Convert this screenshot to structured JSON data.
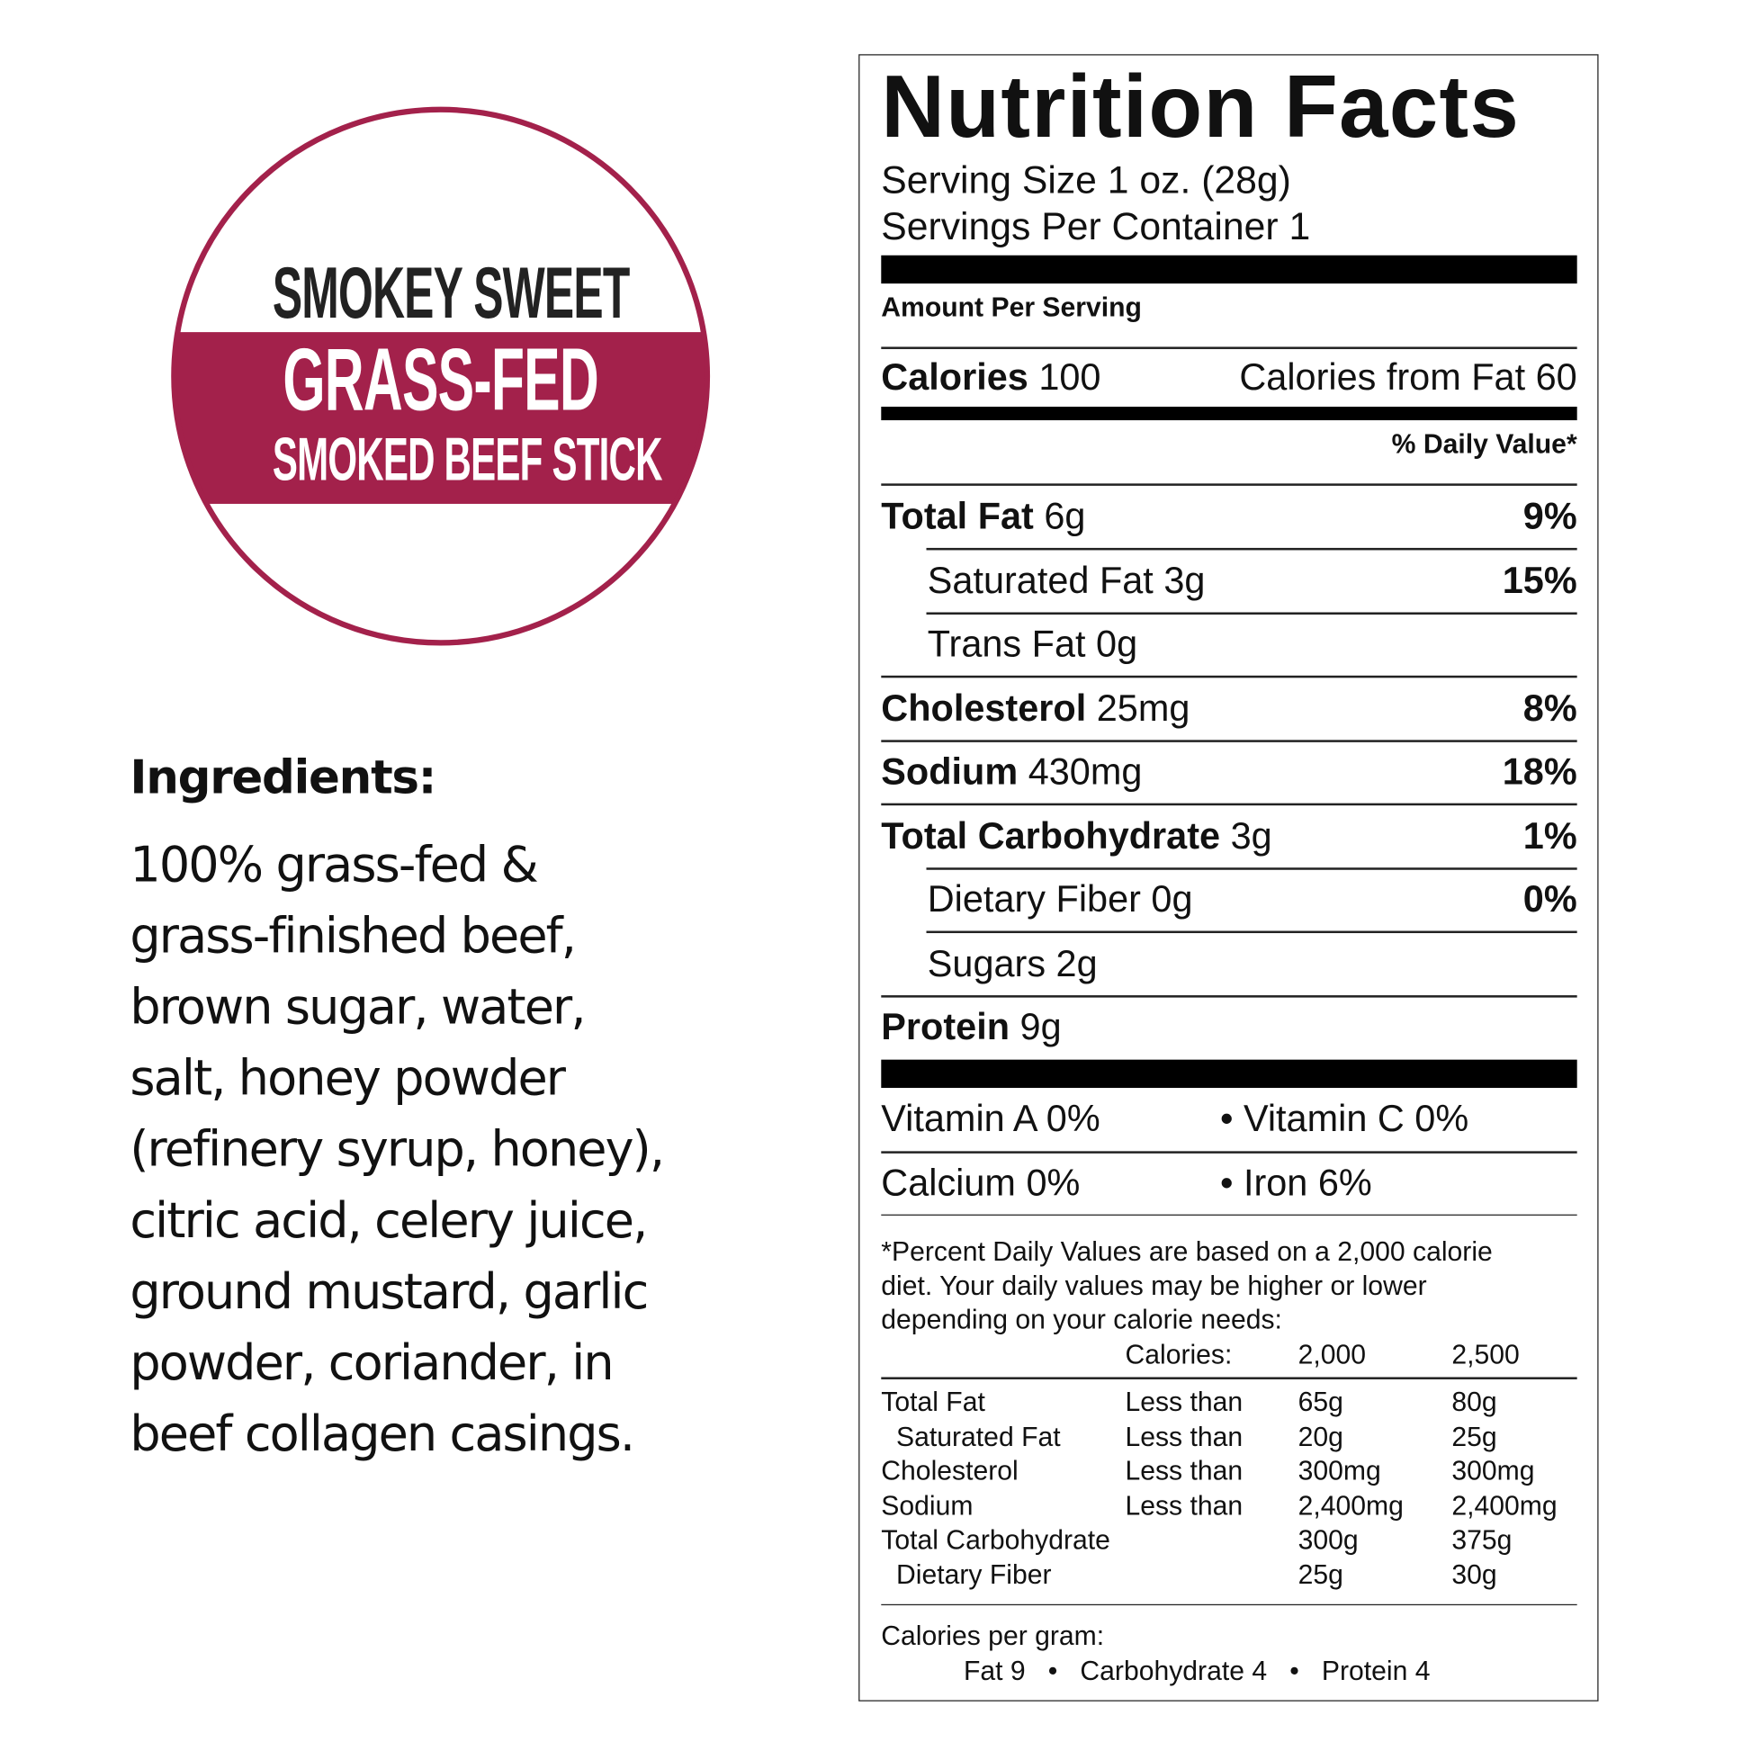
{
  "badge": {
    "line1": "SMOKEY SWEET",
    "line2": "GRASS-FED",
    "line3": "SMOKED BEEF STICK",
    "accent_color": "#A3214B"
  },
  "ingredients": {
    "title": "Ingredients:",
    "lines": [
      "100% grass-fed &",
      "grass-finished beef,",
      "brown sugar, water,",
      "salt, honey powder",
      "(refinery syrup, honey),",
      "citric acid, celery juice,",
      "ground mustard, garlic",
      "powder, coriander, in",
      "beef collagen casings."
    ]
  },
  "nutrition": {
    "title": "Nutrition Facts",
    "serving_size": "Serving Size 1 oz. (28g)",
    "servings_per_container": "Servings Per Container 1",
    "amount_per_serving": "Amount Per Serving",
    "calories_label": "Calories",
    "calories_value": "100",
    "calories_from_fat": "Calories from Fat 60",
    "daily_value_header": "% Daily Value*",
    "rows": [
      {
        "label": "Total Fat",
        "amount": "6g",
        "dv": "9%",
        "indent": false
      },
      {
        "label": "Saturated Fat",
        "amount": "3g",
        "dv": "15%",
        "indent": true
      },
      {
        "label": "Trans Fat",
        "amount": "0g",
        "dv": "",
        "indent": true
      },
      {
        "label": "Cholesterol",
        "amount": "25mg",
        "dv": "8%",
        "indent": false
      },
      {
        "label": "Sodium",
        "amount": "430mg",
        "dv": "18%",
        "indent": false
      },
      {
        "label": "Total Carbohydrate",
        "amount": "3g",
        "dv": "1%",
        "indent": false
      },
      {
        "label": "Dietary Fiber",
        "amount": "0g",
        "dv": "0%",
        "indent": true
      },
      {
        "label": "Sugars",
        "amount": "2g",
        "dv": "",
        "indent": true
      },
      {
        "label": "Protein",
        "amount": "9g",
        "dv": "",
        "indent": false
      }
    ],
    "vitamins": [
      [
        "Vitamin A 0%",
        "• Vitamin C 0%"
      ],
      [
        "Calcium 0%",
        "• Iron 6%"
      ]
    ],
    "footnote": [
      "*Percent Daily Values are based on a 2,000 calorie",
      "diet. Your daily values may be higher or lower",
      "depending on your calorie needs:"
    ],
    "table_header": [
      "",
      "Calories:",
      "2,000",
      "2,500"
    ],
    "table_rows": [
      [
        "Total Fat",
        "Less than",
        "65g",
        "80g"
      ],
      [
        "  Saturated Fat",
        "Less than",
        "20g",
        "25g"
      ],
      [
        "Cholesterol",
        "Less than",
        "300mg",
        "300mg"
      ],
      [
        "Sodium",
        "Less than",
        "2,400mg",
        "2,400mg"
      ],
      [
        "Total Carbohydrate",
        "",
        "300g",
        "375g"
      ],
      [
        "  Dietary Fiber",
        "",
        "25g",
        "30g"
      ]
    ],
    "calories_per_gram": "Calories per gram:",
    "calories_per_gram_values": "Fat 9   •   Carbohydrate 4   •   Protein 4"
  }
}
